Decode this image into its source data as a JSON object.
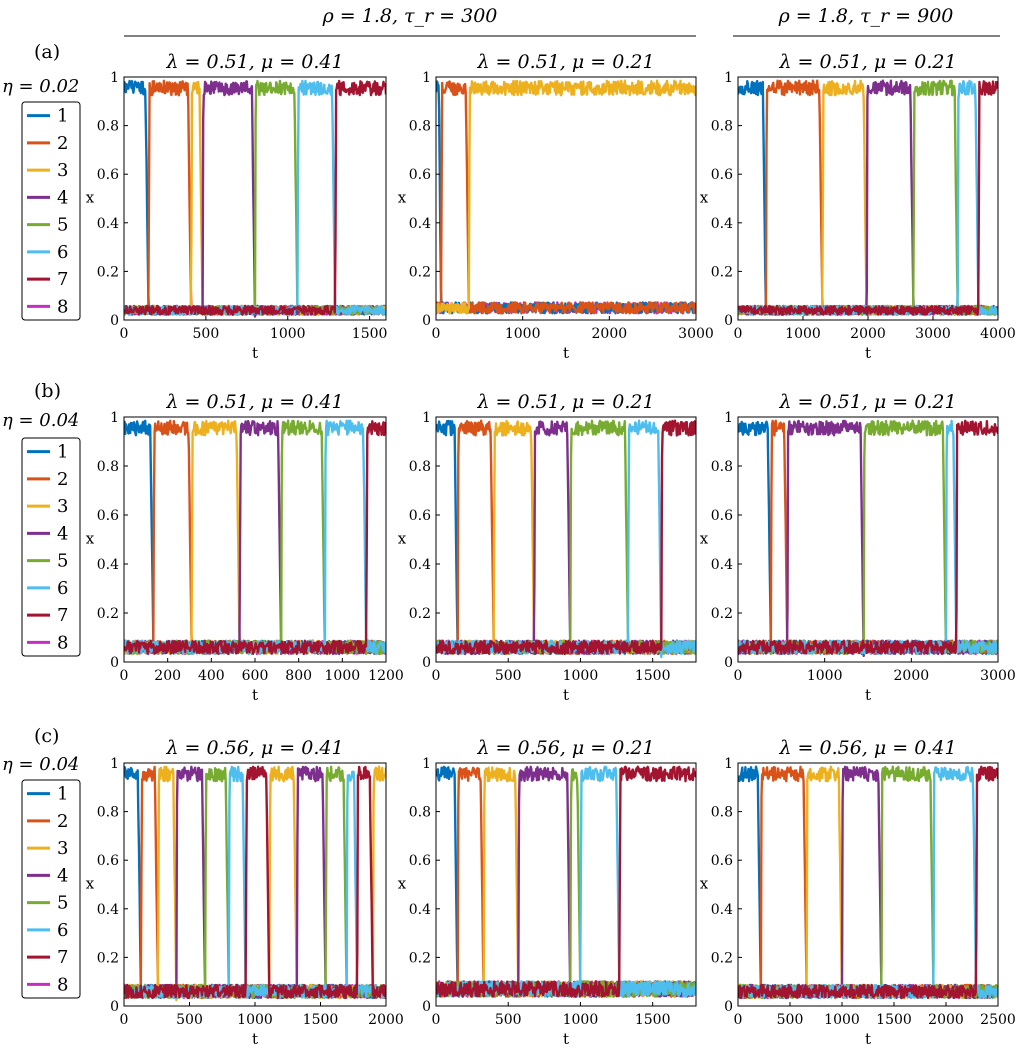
{
  "figure": {
    "group_headers": [
      {
        "text": "ρ = 1.8, τ_r = 300"
      },
      {
        "text": "ρ = 1.8, τ_r = 900"
      }
    ],
    "row_labels": [
      {
        "label": "(a)",
        "eta": "η = 0.02"
      },
      {
        "label": "(b)",
        "eta": "η = 0.04"
      },
      {
        "label": "(c)",
        "eta": "η = 0.04"
      }
    ],
    "legend_entries": [
      "1",
      "2",
      "3",
      "4",
      "5",
      "6",
      "7",
      "8"
    ],
    "series_colors": [
      "#0072BD",
      "#D95319",
      "#EDB120",
      "#7E2F8E",
      "#77AC30",
      "#4DBEEE",
      "#A2142F",
      "#C62CC6"
    ]
  },
  "chart_data": [
    {
      "type": "line",
      "row": 0,
      "col": 0,
      "title": "λ = 0.51, μ = 0.41",
      "xlabel": "t",
      "ylabel": "x",
      "xlim": [
        0,
        1600
      ],
      "ylim": [
        0,
        1
      ],
      "xticks": [
        0,
        500,
        1000,
        1500
      ],
      "xtick_labels": [
        "0",
        "500",
        "1000",
        "1500"
      ],
      "yticks": [
        0,
        0.2,
        0.4,
        0.6,
        0.8,
        1
      ],
      "ytick_labels": [
        "0",
        "0.2",
        "0.4",
        "0.6",
        "0.8",
        "1"
      ],
      "transitions": [
        [
          0,
          150
        ],
        [
          1,
          410
        ],
        [
          2,
          480
        ],
        [
          3,
          800
        ],
        [
          4,
          1060
        ],
        [
          5,
          1290
        ],
        [
          6,
          1600
        ]
      ],
      "low_level": 0.04
    },
    {
      "type": "line",
      "row": 0,
      "col": 1,
      "title": "λ = 0.51, μ = 0.21",
      "xlabel": "t",
      "ylabel": "x",
      "xlim": [
        0,
        3000
      ],
      "ylim": [
        0,
        1
      ],
      "xticks": [
        0,
        1000,
        2000,
        3000
      ],
      "xtick_labels": [
        "0",
        "1000",
        "2000",
        "3000"
      ],
      "yticks": [
        0,
        0.2,
        0.4,
        0.6,
        0.8,
        1
      ],
      "ytick_labels": [
        "0",
        "0.2",
        "0.4",
        "0.6",
        "0.8",
        "1"
      ],
      "transitions": [
        [
          0,
          60
        ],
        [
          1,
          380
        ],
        [
          2,
          3000
        ]
      ],
      "low_level": 0.05
    },
    {
      "type": "line",
      "row": 0,
      "col": 2,
      "title": "λ = 0.51, μ = 0.21",
      "xlabel": "t",
      "ylabel": "x",
      "xlim": [
        0,
        4000
      ],
      "ylim": [
        0,
        1
      ],
      "xticks": [
        0,
        1000,
        2000,
        3000,
        4000
      ],
      "xtick_labels": [
        "0",
        "1000",
        "2000",
        "3000",
        "4000"
      ],
      "yticks": [
        0,
        0.2,
        0.4,
        0.6,
        0.8,
        1
      ],
      "ytick_labels": [
        "0",
        "0.2",
        "0.4",
        "0.6",
        "0.8",
        "1"
      ],
      "transitions": [
        [
          0,
          430
        ],
        [
          1,
          1300
        ],
        [
          2,
          1980
        ],
        [
          3,
          2700
        ],
        [
          4,
          3380
        ],
        [
          5,
          3700
        ],
        [
          6,
          4000
        ]
      ],
      "low_level": 0.04
    },
    {
      "type": "line",
      "row": 1,
      "col": 0,
      "title": "λ = 0.51, μ = 0.41",
      "xlabel": "t",
      "ylabel": "x",
      "xlim": [
        0,
        1200
      ],
      "ylim": [
        0,
        1
      ],
      "xticks": [
        0,
        200,
        400,
        600,
        800,
        1000,
        1200
      ],
      "xtick_labels": [
        "0",
        "200",
        "400",
        "600",
        "800",
        "1000",
        "1200"
      ],
      "yticks": [
        0,
        0.2,
        0.4,
        0.6,
        0.8,
        1
      ],
      "ytick_labels": [
        "0",
        "0.2",
        "0.4",
        "0.6",
        "0.8",
        "1"
      ],
      "transitions": [
        [
          0,
          135
        ],
        [
          1,
          310
        ],
        [
          2,
          530
        ],
        [
          3,
          720
        ],
        [
          4,
          920
        ],
        [
          5,
          1110
        ],
        [
          6,
          1200
        ]
      ],
      "low_level": 0.06
    },
    {
      "type": "line",
      "row": 1,
      "col": 1,
      "title": "λ = 0.51, μ = 0.21",
      "xlabel": "t",
      "ylabel": "x",
      "xlim": [
        0,
        1800
      ],
      "ylim": [
        0,
        1
      ],
      "xticks": [
        0,
        500,
        1000,
        1500
      ],
      "xtick_labels": [
        "0",
        "500",
        "1000",
        "1500"
      ],
      "yticks": [
        0,
        0.2,
        0.4,
        0.6,
        0.8,
        1
      ],
      "ytick_labels": [
        "0",
        "0.2",
        "0.4",
        "0.6",
        "0.8",
        "1"
      ],
      "transitions": [
        [
          0,
          150
        ],
        [
          1,
          400
        ],
        [
          2,
          680
        ],
        [
          3,
          930
        ],
        [
          4,
          1330
        ],
        [
          5,
          1560
        ],
        [
          6,
          1800
        ]
      ],
      "low_level": 0.06
    },
    {
      "type": "line",
      "row": 1,
      "col": 2,
      "title": "λ = 0.51, μ = 0.21",
      "xlabel": "t",
      "ylabel": "x",
      "xlim": [
        0,
        3000
      ],
      "ylim": [
        0,
        1
      ],
      "xticks": [
        0,
        1000,
        2000,
        3000
      ],
      "xtick_labels": [
        "0",
        "1000",
        "2000",
        "3000"
      ],
      "yticks": [
        0,
        0.2,
        0.4,
        0.6,
        0.8,
        1
      ],
      "ytick_labels": [
        "0",
        "0.2",
        "0.4",
        "0.6",
        "0.8",
        "1"
      ],
      "transitions": [
        [
          0,
          380
        ],
        [
          1,
          570
        ],
        [
          3,
          1450
        ],
        [
          4,
          2400
        ],
        [
          5,
          2520
        ],
        [
          6,
          3000
        ]
      ],
      "low_level": 0.06
    },
    {
      "type": "line",
      "row": 2,
      "col": 0,
      "title": "λ = 0.56, μ = 0.41",
      "xlabel": "t",
      "ylabel": "x",
      "xlim": [
        0,
        2000
      ],
      "ylim": [
        0,
        1
      ],
      "xticks": [
        0,
        500,
        1000,
        1500,
        2000
      ],
      "xtick_labels": [
        "0",
        "500",
        "1000",
        "1500",
        "2000"
      ],
      "yticks": [
        0,
        0.2,
        0.4,
        0.6,
        0.8,
        1
      ],
      "ytick_labels": [
        "0",
        "0.2",
        "0.4",
        "0.6",
        "0.8",
        "1"
      ],
      "transitions": [
        [
          0,
          130
        ],
        [
          1,
          260
        ],
        [
          2,
          400
        ],
        [
          3,
          620
        ],
        [
          4,
          800
        ],
        [
          5,
          930
        ],
        [
          6,
          1110
        ],
        [
          2,
          1320
        ],
        [
          3,
          1540
        ],
        [
          4,
          1700
        ],
        [
          5,
          1780
        ],
        [
          6,
          1900
        ],
        [
          2,
          2000
        ]
      ],
      "low_level": 0.06
    },
    {
      "type": "line",
      "row": 2,
      "col": 1,
      "title": "λ = 0.56, μ = 0.21",
      "xlabel": "t",
      "ylabel": "x",
      "xlim": [
        0,
        1800
      ],
      "ylim": [
        0,
        1
      ],
      "xticks": [
        0,
        500,
        1000,
        1500
      ],
      "xtick_labels": [
        "0",
        "500",
        "1000",
        "1500"
      ],
      "yticks": [
        0,
        0.2,
        0.4,
        0.6,
        0.8,
        1
      ],
      "ytick_labels": [
        "0",
        "0.2",
        "0.4",
        "0.6",
        "0.8",
        "1"
      ],
      "transitions": [
        [
          0,
          150
        ],
        [
          1,
          330
        ],
        [
          2,
          570
        ],
        [
          3,
          930
        ],
        [
          4,
          1000
        ],
        [
          5,
          1270
        ],
        [
          6,
          1800
        ]
      ],
      "low_level": 0.07
    },
    {
      "type": "line",
      "row": 2,
      "col": 2,
      "title": "λ = 0.56, μ = 0.41",
      "xlabel": "t",
      "ylabel": "x",
      "xlim": [
        0,
        2500
      ],
      "ylim": [
        0,
        1
      ],
      "xticks": [
        0,
        500,
        1000,
        1500,
        2000,
        2500
      ],
      "xtick_labels": [
        "0",
        "500",
        "1000",
        "1500",
        "2000",
        "2500"
      ],
      "yticks": [
        0,
        0.2,
        0.4,
        0.6,
        0.8,
        1
      ],
      "ytick_labels": [
        "0",
        "0.2",
        "0.4",
        "0.6",
        "0.8",
        "1"
      ],
      "transitions": [
        [
          0,
          220
        ],
        [
          1,
          660
        ],
        [
          2,
          1000
        ],
        [
          3,
          1380
        ],
        [
          4,
          1880
        ],
        [
          5,
          2290
        ],
        [
          6,
          2500
        ]
      ],
      "low_level": 0.06
    }
  ]
}
